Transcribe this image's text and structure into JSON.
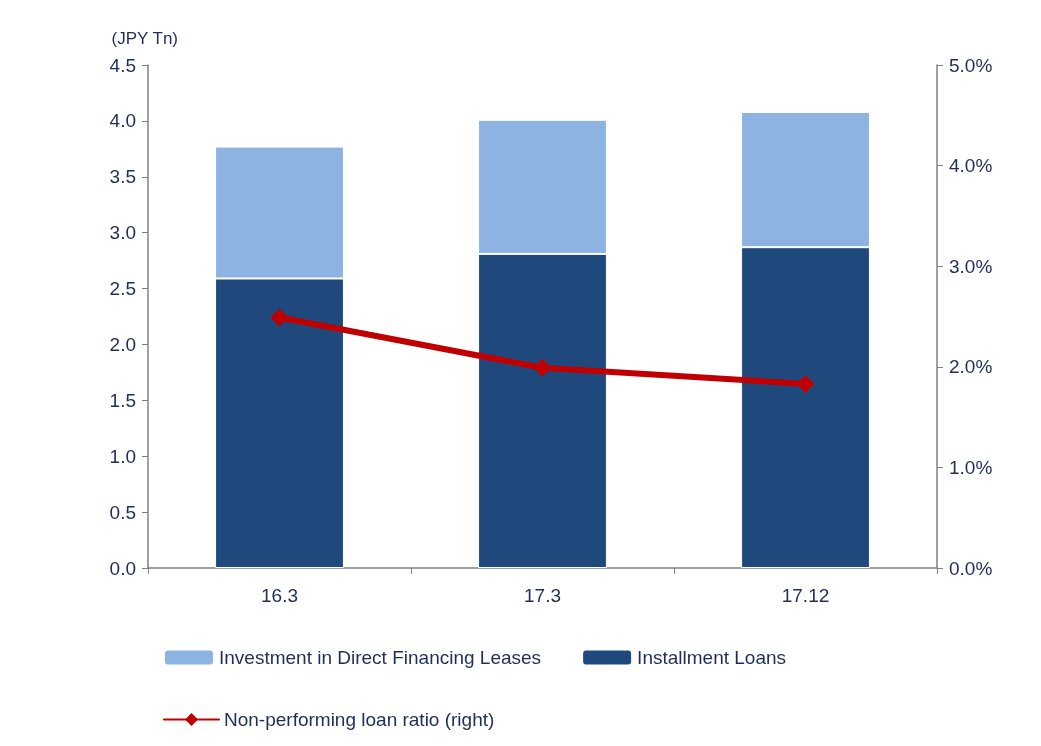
{
  "chart_data": {
    "type": "bar",
    "ylabel": "(JPY Tn)",
    "categories": [
      "16.3",
      "17.3",
      "17.12"
    ],
    "stacked": true,
    "series": [
      {
        "name": "Installment Loans",
        "color": "#1f497d",
        "values": [
          2.59,
          2.81,
          2.87
        ]
      },
      {
        "name": "Investment in Direct Financing Leases",
        "color": "#8db3e2",
        "values": [
          1.18,
          1.2,
          1.21
        ]
      },
      {
        "name": "Non-performing loan ratio (right)",
        "type": "line",
        "axis": "y2",
        "color": "#c00000",
        "values": [
          2.49,
          1.99,
          1.83
        ]
      }
    ],
    "ylim": [
      0,
      4.5
    ],
    "yticks": [
      {
        "value": 0,
        "label": "0.0"
      },
      {
        "value": 0.5,
        "label": "0.5"
      },
      {
        "value": 1,
        "label": "1.0"
      },
      {
        "value": 1.5,
        "label": "1.5"
      },
      {
        "value": 2,
        "label": "2.0"
      },
      {
        "value": 2.5,
        "label": "2.5"
      },
      {
        "value": 3,
        "label": "3.0"
      },
      {
        "value": 3.5,
        "label": "3.5"
      },
      {
        "value": 4,
        "label": "4.0"
      },
      {
        "value": 4.5,
        "label": "4.5"
      }
    ],
    "y2lim": [
      0,
      5
    ],
    "y2ticks": [
      {
        "value": 0,
        "label": "0.0%"
      },
      {
        "value": 1,
        "label": "1.0%"
      },
      {
        "value": 2,
        "label": "2.0%"
      },
      {
        "value": 3,
        "label": "3.0%"
      },
      {
        "value": 4,
        "label": "4.0%"
      },
      {
        "value": 5,
        "label": "5.0%"
      }
    ],
    "grid": false,
    "legend": "bottom",
    "marker": "diamond",
    "line_style": "solid"
  }
}
